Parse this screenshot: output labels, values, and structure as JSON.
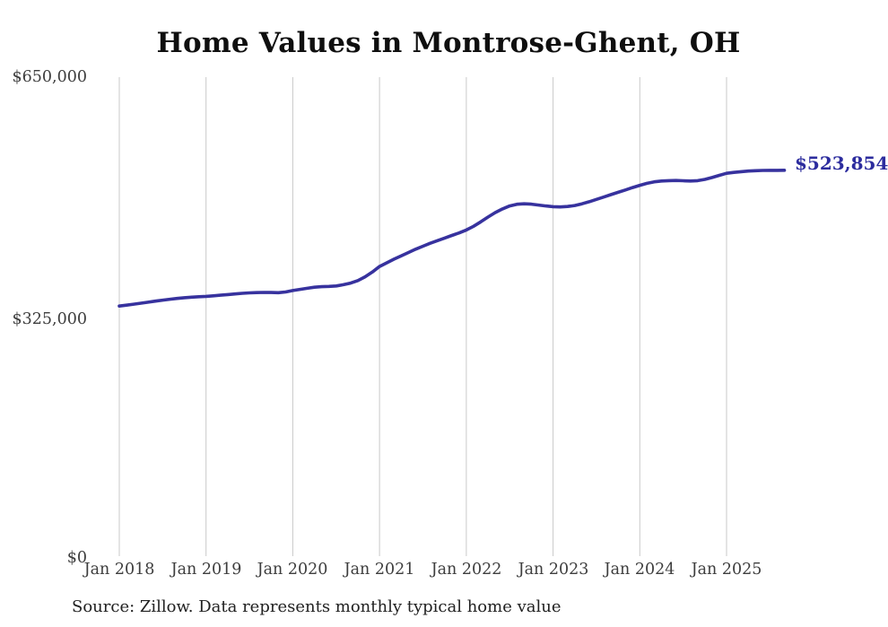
{
  "source_note": "Source: Zillow. Data represents monthly typical home value",
  "colors": {
    "line": "#37329e",
    "value_label": "#2c2c9e",
    "grid": "#c9c9c9",
    "axis_text": "#3d3d3d",
    "title_text": "#0f0f0f"
  },
  "chart_data": {
    "type": "line",
    "title": "Home Values in Montrose-Ghent, OH",
    "x_tick_labels": [
      "Jan 2018",
      "Jan 2019",
      "Jan 2020",
      "Jan 2021",
      "Jan 2022",
      "Jan 2023",
      "Jan 2024",
      "Jan 2025"
    ],
    "y_tick_labels": [
      "$650,000",
      "$325,000",
      "$0"
    ],
    "y_ticks": [
      650000,
      325000,
      0
    ],
    "ylim": [
      0,
      650000
    ],
    "grid": "vertical-only",
    "legend": "none",
    "frequency": "monthly",
    "start_month": "2018-01",
    "end_month": "2025-09",
    "latest_value_label": "$523,854",
    "latest_value": 523854,
    "series": [
      {
        "name": "Typical home value",
        "color": "#37329e",
        "values": [
          340000,
          341200,
          342500,
          343800,
          345200,
          346600,
          348000,
          349200,
          350300,
          351200,
          352000,
          352600,
          353100,
          353800,
          354600,
          355500,
          356400,
          357200,
          357800,
          358200,
          358400,
          358300,
          358000,
          359000,
          361000,
          362500,
          364000,
          365500,
          366200,
          366500,
          367200,
          368800,
          371000,
          374500,
          379500,
          386000,
          393500,
          398500,
          403500,
          408000,
          412500,
          417000,
          421000,
          425000,
          428500,
          432000,
          435500,
          439000,
          443000,
          448000,
          454000,
          460500,
          466500,
          471500,
          475500,
          477800,
          478400,
          478000,
          476800,
          475500,
          474600,
          474200,
          474800,
          476200,
          478400,
          481200,
          484400,
          487600,
          490800,
          494000,
          497200,
          500400,
          503500,
          506200,
          508200,
          509300,
          509800,
          510000,
          509700,
          509300,
          509800,
          511500,
          514000,
          517000,
          519800,
          521000,
          522000,
          522800,
          523300,
          523600,
          523750,
          523800,
          523854
        ]
      }
    ]
  }
}
